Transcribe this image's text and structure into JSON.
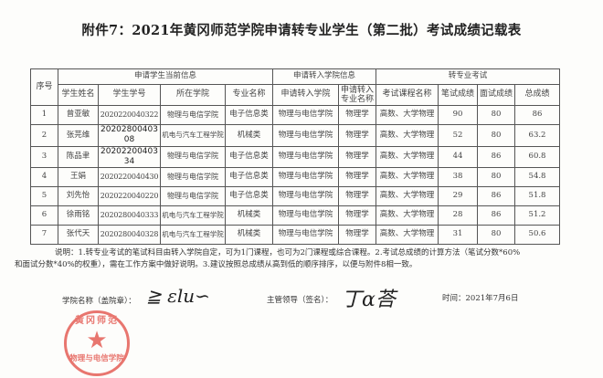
{
  "title": "附件7：2021年黄冈师范学院申请转专业学生（第二批）考试成绩记载表",
  "headers": {
    "seq": "序号",
    "group_current": "申请学生当前信息",
    "group_target": "申请转入学院信息",
    "group_exam": "转专业考试",
    "name": "学生姓名",
    "student_id": "学生学号",
    "college": "所在学院",
    "major": "专业名称",
    "target_college": "申请转入学院",
    "target_major": "申请转入专业名称",
    "course": "考试课程名称",
    "written": "笔试成绩",
    "interview": "面试成绩",
    "total": "总成绩"
  },
  "rows": [
    {
      "seq": "1",
      "name": "曾亚敏",
      "id": "2020220040322",
      "college": "物理与电信学院",
      "major": "电子信息类",
      "target_college": "物理与电信学院",
      "target_major": "物理学",
      "course": "高数、大学物理",
      "written": "90",
      "interview": "80",
      "total": "86"
    },
    {
      "seq": "2",
      "name": "张芫维",
      "id": "2020280040308",
      "college": "机电与汽车工程学院",
      "major": "机械类",
      "target_college": "物理与电信学院",
      "target_major": "物理学",
      "course": "高数、大学物理",
      "written": "52",
      "interview": "80",
      "total": "63.2"
    },
    {
      "seq": "3",
      "name": "陈品聿",
      "id": "2020220040334",
      "college": "物理与电信学院",
      "major": "电子信息类",
      "target_college": "物理与电信学院",
      "target_major": "物理学",
      "course": "高数、大学物理",
      "written": "44",
      "interview": "86",
      "total": "60.8"
    },
    {
      "seq": "4",
      "name": "王娟",
      "id": "2020220040430",
      "college": "物理与电信学院",
      "major": "电子信息类",
      "target_college": "物理与电信学院",
      "target_major": "物理学",
      "course": "高数、大学物理",
      "written": "38",
      "interview": "80",
      "total": "54.8"
    },
    {
      "seq": "5",
      "name": "刘先怡",
      "id": "2020220040220",
      "college": "物理与电信学院",
      "major": "电子信息类",
      "target_college": "物理与电信学院",
      "target_major": "物理学",
      "course": "高数、大学物理",
      "written": "29",
      "interview": "86",
      "total": "51.8"
    },
    {
      "seq": "6",
      "name": "徐雨铭",
      "id": "2020280040333",
      "college": "机电与汽车工程学院",
      "major": "机械类",
      "target_college": "物理与电信学院",
      "target_major": "物理学",
      "course": "高数、大学物理",
      "written": "28",
      "interview": "86",
      "total": "51.2"
    },
    {
      "seq": "7",
      "name": "张代天",
      "id": "2020280040328",
      "college": "机电与汽车工程学院",
      "major": "机械类",
      "target_college": "物理与电信学院",
      "target_major": "物理学",
      "course": "高数、大学物理",
      "written": "31",
      "interview": "80",
      "total": "50.6"
    }
  ],
  "note_line1": "说明：1.转专业考试的笔试科目由转入学院自定，可为1门课程，也可为2门课程或综合课程。2.考试总成绩的计算方法（笔试分数*60%",
  "note_line2": "和面试分数*40%的权重），需在工作方案中做好说明。3.建议按照总成绩从高到低的顺序排序，以便与附件8相一致。",
  "college_sign_label": "学院名称（盖院章）：",
  "leader_sign_label": "主管领导（签名）：",
  "date": "时间：2021年7月6日",
  "stamp_text": "黄冈师范学院 物理与电信学院",
  "stamp_color": "#e8766f"
}
